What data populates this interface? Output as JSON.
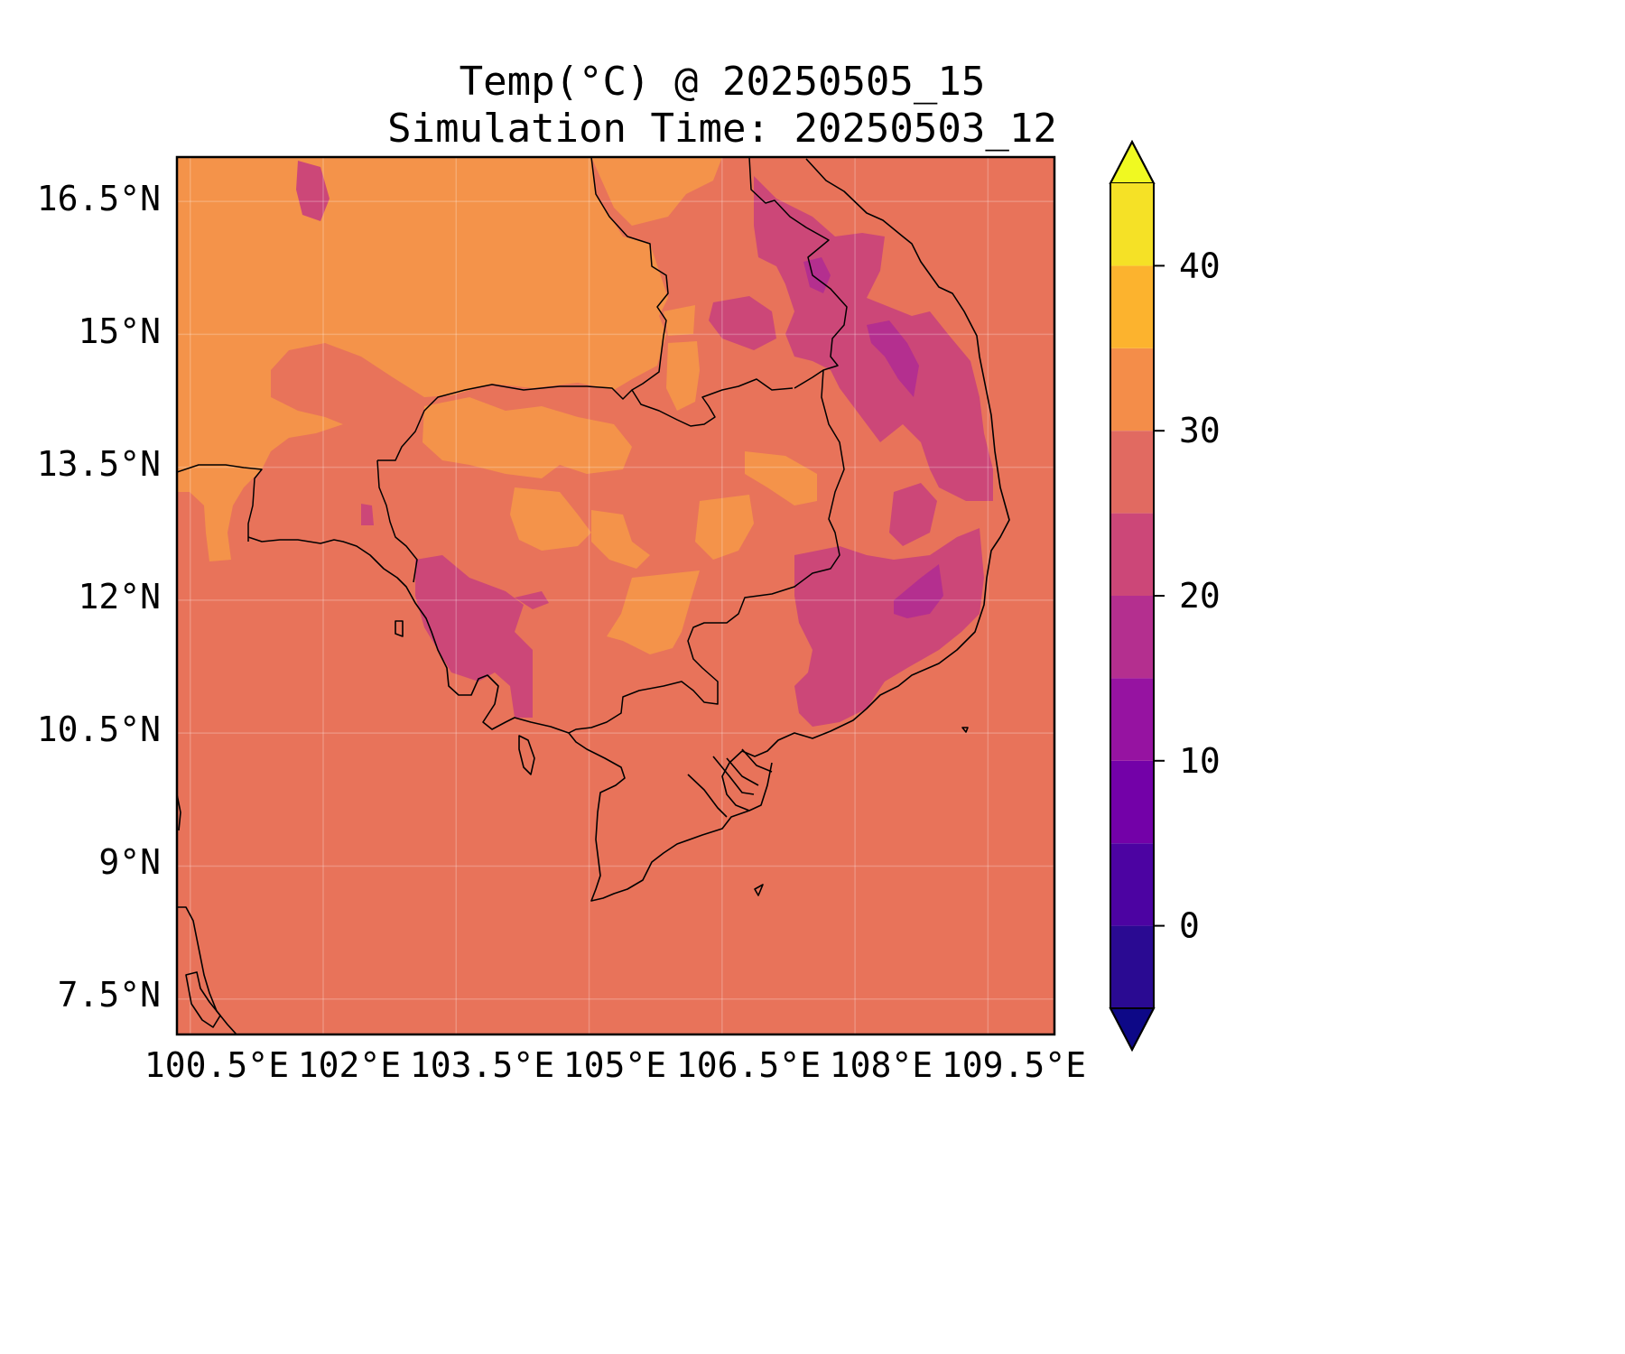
{
  "title": {
    "line1": "Temp(°C) @ 20250505_15",
    "line2": "Simulation Time: 20250503_12"
  },
  "map": {
    "extent": {
      "lon": [
        100.35,
        110.25
      ],
      "lat": [
        7.1,
        17.0
      ]
    },
    "lon_ticks": [
      "100.5°E",
      "102°E",
      "103.5°E",
      "105°E",
      "106.5°E",
      "108°E",
      "109.5°E"
    ],
    "lat_ticks": [
      "16.5°N",
      "15°N",
      "13.5°N",
      "12°N",
      "10.5°N",
      "9°N",
      "7.5°N"
    ],
    "gridlines": true,
    "background_band_color": "#e8735a",
    "coastlines": true
  },
  "colorbar": {
    "orientation": "vertical",
    "extend": "both",
    "levels": [
      -5,
      0,
      5,
      10,
      15,
      20,
      25,
      30,
      35,
      40,
      45
    ],
    "tick_labels": [
      "0",
      "10",
      "20",
      "30",
      "40"
    ],
    "colors": [
      "#2a0a92",
      "#4c03a2",
      "#7301a8",
      "#9613a1",
      "#b42f8f",
      "#cc4778",
      "#e16a61",
      "#f48d49",
      "#fcb32e",
      "#f5e126"
    ],
    "under_color": "#0d0887",
    "over_color": "#f0f921"
  }
}
